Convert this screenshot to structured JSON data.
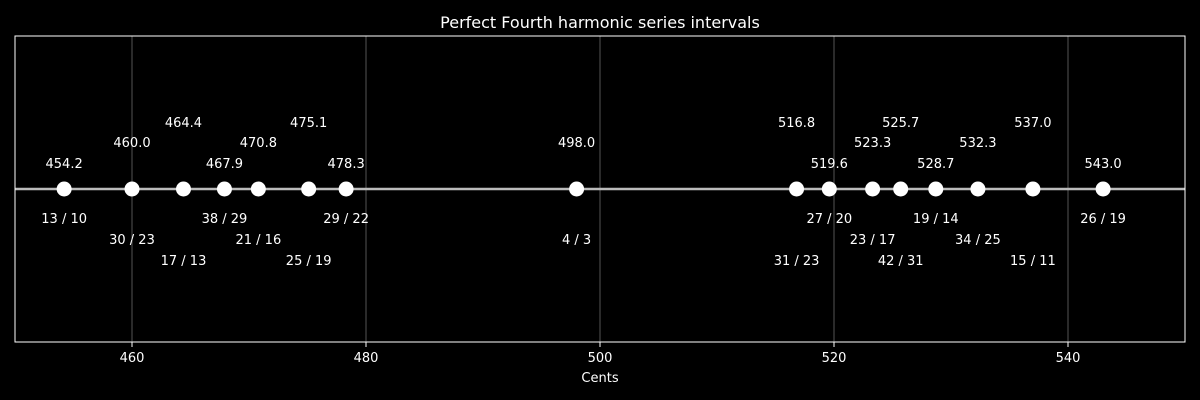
{
  "chart_data": {
    "type": "scatter",
    "title": "Perfect Fourth harmonic series intervals",
    "xlabel": "Cents",
    "ylabel": "",
    "xlim": [
      450,
      550
    ],
    "xticks": [
      460,
      480,
      500,
      520,
      540
    ],
    "grid": "vertical",
    "points": [
      {
        "cents": 454.2,
        "value_label": "454.2",
        "ratio": "13 / 10"
      },
      {
        "cents": 460.0,
        "value_label": "460.0",
        "ratio": "30 / 23"
      },
      {
        "cents": 464.4,
        "value_label": "464.4",
        "ratio": "17 / 13"
      },
      {
        "cents": 467.9,
        "value_label": "467.9",
        "ratio": "38 / 29"
      },
      {
        "cents": 470.8,
        "value_label": "470.8",
        "ratio": "21 / 16"
      },
      {
        "cents": 475.1,
        "value_label": "475.1",
        "ratio": "25 / 19"
      },
      {
        "cents": 478.3,
        "value_label": "478.3",
        "ratio": "29 / 22"
      },
      {
        "cents": 498.0,
        "value_label": "498.0",
        "ratio": "4 / 3"
      },
      {
        "cents": 516.8,
        "value_label": "516.8",
        "ratio": "31 / 23"
      },
      {
        "cents": 519.6,
        "value_label": "519.6",
        "ratio": "27 / 20"
      },
      {
        "cents": 523.3,
        "value_label": "523.3",
        "ratio": "23 / 17"
      },
      {
        "cents": 525.7,
        "value_label": "525.7",
        "ratio": "42 / 31"
      },
      {
        "cents": 528.7,
        "value_label": "528.7",
        "ratio": "19 / 14"
      },
      {
        "cents": 532.3,
        "value_label": "532.3",
        "ratio": "34 / 25"
      },
      {
        "cents": 537.0,
        "value_label": "537.0",
        "ratio": "15 / 11"
      },
      {
        "cents": 543.0,
        "value_label": "543.0",
        "ratio": "26 / 19"
      }
    ],
    "colors": {
      "background": "#000000",
      "foreground": "#ffffff",
      "grid": "#555555",
      "baseline": "#bbbbbb",
      "marker": "#ffffff"
    }
  }
}
